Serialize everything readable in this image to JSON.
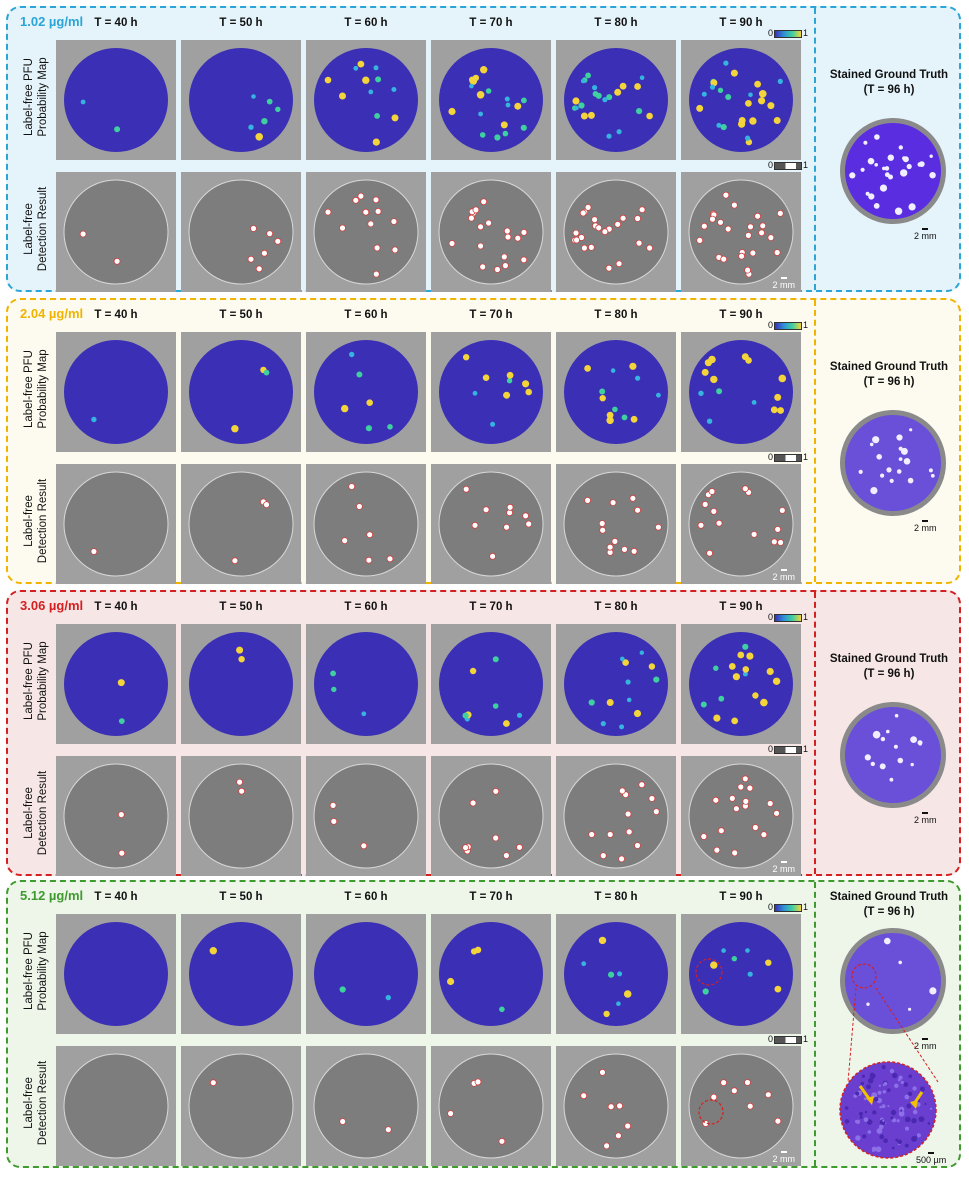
{
  "time_labels": [
    "T = 40 h",
    "T = 50 h",
    "T = 60 h",
    "T = 70 h",
    "T = 80 h",
    "T = 90 h"
  ],
  "row_labels": {
    "probability": [
      "Label-free PFU",
      "Probability Map"
    ],
    "detection": [
      "Label-free",
      "Detection Result"
    ]
  },
  "colorbar": {
    "min": "0",
    "max": "1"
  },
  "scale_bar": {
    "tile": "2 mm",
    "ground_truth": "2 mm",
    "zoom": "500 µm"
  },
  "ground_truth": {
    "title": "Stained Ground Truth",
    "subtitle": "(T = 96 h)"
  },
  "panels": [
    {
      "concentration": "1.02 µg/ml",
      "color": "#2aa5d6",
      "background": "#e5f3fb"
    },
    {
      "concentration": "2.04 µg/ml",
      "color": "#f0b400",
      "background": "#fdfbef"
    },
    {
      "concentration": "3.06 µg/ml",
      "color": "#d42020",
      "background": "#f6e6e6"
    },
    {
      "concentration": "5.12 µg/ml",
      "color": "#3f9a30",
      "background": "#eef6ea"
    }
  ],
  "colors": {
    "probability_dish": "#3b2fb5",
    "tile_background": "#a0a0a0",
    "detection_dish": "#7d7d7d",
    "stain_dish": "#6a4fd8",
    "annotation": "#d42020",
    "arrow": "#f2c200"
  }
}
